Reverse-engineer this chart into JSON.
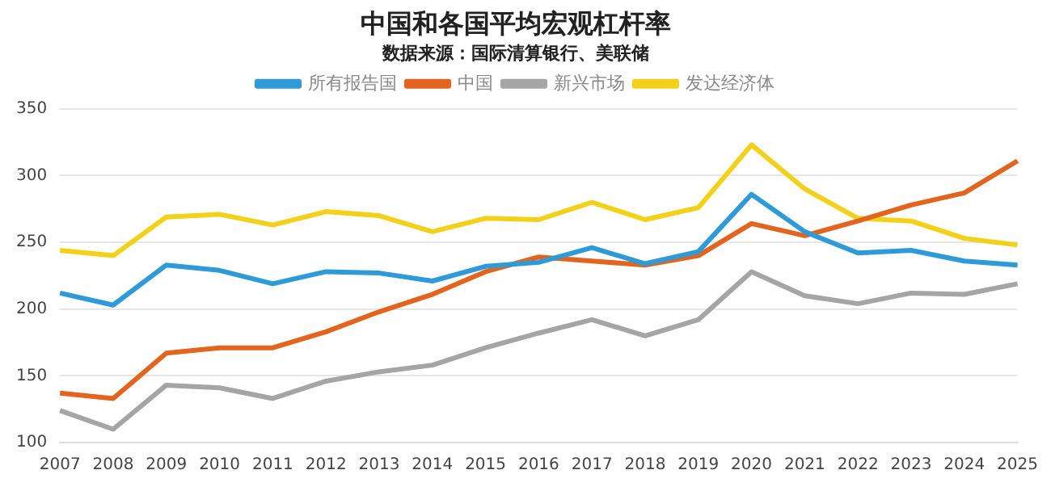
{
  "chart_data": {
    "type": "line",
    "title": "中国和各国平均宏观杠杆率",
    "subtitle": "数据来源：国际清算银行、美联储",
    "categories": [
      "2007",
      "2008",
      "2009",
      "2010",
      "2011",
      "2012",
      "2013",
      "2014",
      "2015",
      "2016",
      "2017",
      "2018",
      "2019",
      "2020",
      "2021",
      "2022",
      "2023",
      "2024",
      "2025"
    ],
    "series": [
      {
        "name": "所有报告国",
        "color": "#2e9ad8",
        "values": [
          212,
          203,
          233,
          229,
          219,
          228,
          227,
          221,
          232,
          235,
          246,
          234,
          243,
          286,
          258,
          242,
          244,
          236,
          233
        ]
      },
      {
        "name": "中国",
        "color": "#e2641e",
        "values": [
          137,
          133,
          167,
          171,
          171,
          183,
          198,
          211,
          228,
          239,
          236,
          233,
          240,
          264,
          255,
          266,
          278,
          287,
          311
        ]
      },
      {
        "name": "新兴市场",
        "color": "#a5a5a5",
        "values": [
          124,
          110,
          143,
          141,
          133,
          146,
          153,
          158,
          171,
          182,
          192,
          180,
          192,
          228,
          210,
          204,
          212,
          211,
          219
        ]
      },
      {
        "name": "发达经济体",
        "color": "#f2d118",
        "values": [
          244,
          240,
          269,
          271,
          263,
          273,
          270,
          258,
          268,
          267,
          280,
          267,
          276,
          323,
          290,
          268,
          266,
          253,
          248
        ]
      }
    ],
    "ylim": [
      100,
      350
    ],
    "yticks": [
      100,
      150,
      200,
      250,
      300,
      350
    ],
    "grid": "y",
    "legend": "top",
    "marker": "none",
    "line_style": "solid"
  }
}
